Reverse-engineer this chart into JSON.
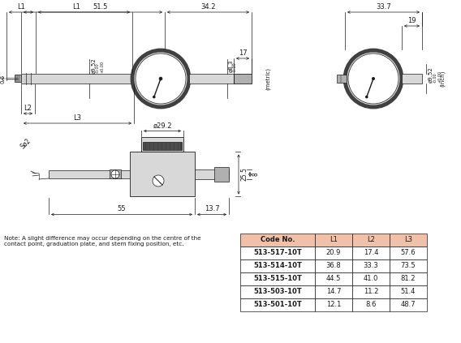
{
  "bg_color": "#ffffff",
  "line_color": "#1a1a1a",
  "gray_fill": "#c8c8c8",
  "dark_gray": "#404040",
  "light_gray": "#d8d8d8",
  "med_gray": "#b0b0b0",
  "table_header_color": "#f0c0a8",
  "table_headers": [
    "Code No.",
    "L1",
    "L2",
    "L3"
  ],
  "table_rows": [
    [
      "513-517-10T",
      "20.9",
      "17.4",
      "57.6"
    ],
    [
      "513-514-10T",
      "36.8",
      "33.3",
      "73.5"
    ],
    [
      "513-515-10T",
      "44.5",
      "41.0",
      "81.2"
    ],
    [
      "513-503-10T",
      "14.7",
      "11.2",
      "51.4"
    ],
    [
      "513-501-10T",
      "12.1",
      "8.6",
      "48.7"
    ]
  ],
  "note_text": "Note: A slight difference may occur depending on the centre of the\ncontact point, graduation plate, and stem fixing position, etc."
}
